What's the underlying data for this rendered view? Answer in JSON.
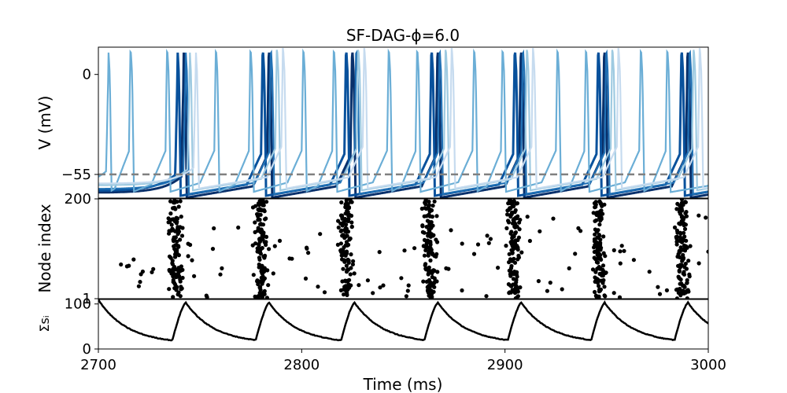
{
  "chart_data": [
    {
      "type": "line",
      "panel": "voltage",
      "title": "SF-DAG-ϕ=6.0",
      "ylabel": "V (mV)",
      "ylim": [
        -68,
        15
      ],
      "yticks": [
        0,
        -55
      ],
      "threshold": {
        "value": -55,
        "style": "dashed",
        "color": "#808080"
      },
      "burst_times_ms": [
        2741,
        2783,
        2824,
        2866,
        2907,
        2948,
        2989
      ],
      "series": [
        {
          "color": "#08306b",
          "spike_offsets_ms": [
            1,
            1,
            1,
            1,
            1,
            1,
            1
          ],
          "rest_mv": -65
        },
        {
          "color": "#08519c",
          "spike_offsets_ms": [
            -2,
            -2,
            -2,
            -2,
            -2,
            -2,
            -2
          ],
          "rest_mv": -64
        },
        {
          "color": "#2171b5",
          "spike_offsets_ms": [
            2,
            2,
            3,
            2,
            2,
            2,
            2
          ],
          "rest_mv": -63
        },
        {
          "color": "#6baed6",
          "spike_offsets_ms": [
            -7,
            -8,
            -8,
            -9,
            -8,
            -8,
            -9
          ],
          "rest_mv": -62
        },
        {
          "color": "#9ecae1",
          "spike_offsets_ms": [
            4,
            5,
            4,
            5,
            4,
            5,
            4
          ],
          "rest_mv": -61
        },
        {
          "color": "#c6dbef",
          "spike_offsets_ms": [
            7,
            8,
            7,
            8,
            7,
            8,
            7
          ],
          "rest_mv": -60
        }
      ],
      "extra_spikes_ms": [
        2705,
        2716,
        2758,
        2801,
        2843,
        2885,
        2926,
        2967
      ]
    },
    {
      "type": "scatter",
      "panel": "raster",
      "ylabel": "Node index",
      "ylim": [
        1,
        200
      ],
      "yticks": [
        1,
        200
      ],
      "marker_color": "#000000",
      "burst_centers_ms": [
        2738,
        2780,
        2822,
        2863,
        2904,
        2946,
        2987
      ],
      "points_per_burst": 120,
      "background_points": 12
    },
    {
      "type": "line",
      "panel": "synaptic-sum",
      "ylabel": "Σsᵢ",
      "ylim": [
        0,
        110
      ],
      "yticks": [
        0,
        100
      ],
      "color": "#000000",
      "peaks_ms": [
        2743,
        2784,
        2826,
        2867,
        2908,
        2949,
        2990
      ],
      "peak_value": 103,
      "trough_value": 12
    }
  ],
  "x_axis": {
    "xlabel": "Time (ms)",
    "xlim": [
      2700,
      3000
    ],
    "xticks": [
      2700,
      2800,
      2900,
      3000
    ]
  }
}
